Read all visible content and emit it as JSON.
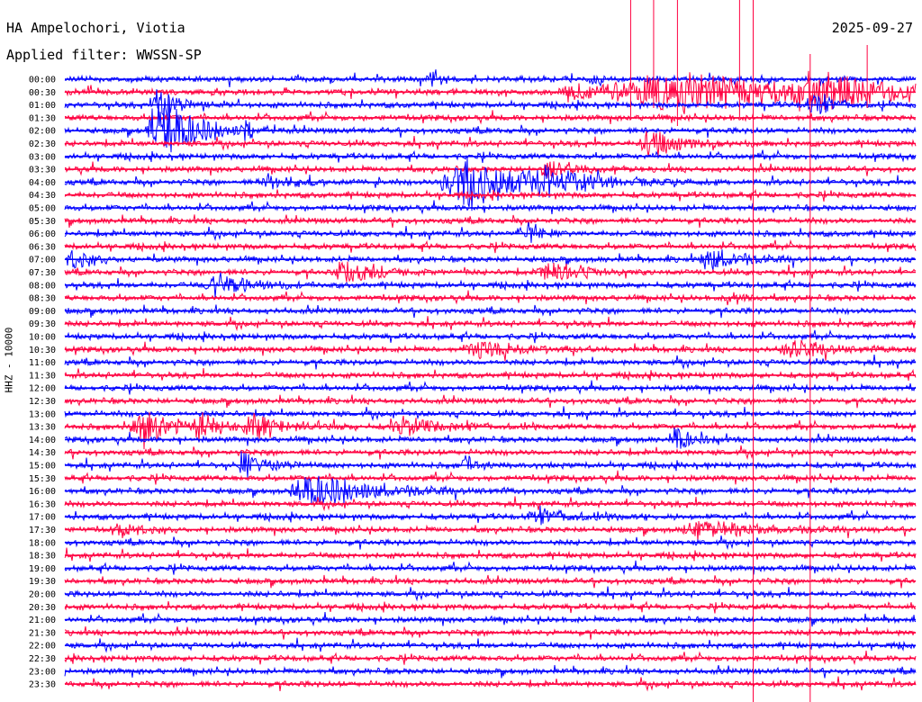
{
  "header": {
    "station": "HA Ampelochori, Viotia",
    "filter": "Applied filter: WWSSN-SP",
    "date": "2025-09-27"
  },
  "chart_data": {
    "type": "line",
    "title": "HA Ampelochori, Viotia",
    "subtitle": "Applied filter: WWSSN-SP",
    "date": "2025-09-27",
    "ylabel": "HHZ - 10000",
    "xlabel": "",
    "grid": false,
    "colors": [
      "#0000ff",
      "#ff0040"
    ],
    "rows": [
      "00:00",
      "00:30",
      "01:00",
      "01:30",
      "02:00",
      "02:30",
      "03:00",
      "03:30",
      "04:00",
      "04:30",
      "05:00",
      "05:30",
      "06:00",
      "06:30",
      "07:00",
      "07:30",
      "08:00",
      "08:30",
      "09:00",
      "09:30",
      "10:00",
      "10:30",
      "11:00",
      "11:30",
      "12:00",
      "12:30",
      "13:00",
      "13:30",
      "14:00",
      "14:30",
      "15:00",
      "15:30",
      "16:00",
      "16:30",
      "17:00",
      "17:30",
      "18:00",
      "18:30",
      "19:00",
      "19:30",
      "20:00",
      "20:30",
      "21:00",
      "21:30",
      "22:00",
      "22:30",
      "23:00",
      "23:30"
    ],
    "events": [
      {
        "row": 0,
        "x": 0.43,
        "amp": 10,
        "dur": 0.01
      },
      {
        "row": 0,
        "x": 0.62,
        "amp": 6,
        "dur": 0.01
      },
      {
        "row": 1,
        "x": 0.6,
        "amp": 10,
        "dur": 0.04
      },
      {
        "row": 1,
        "x": 0.72,
        "amp": 22,
        "dur": 0.18
      },
      {
        "row": 1,
        "x": 0.88,
        "amp": 18,
        "dur": 0.06
      },
      {
        "row": 2,
        "x": 0.11,
        "amp": 26,
        "dur": 0.015
      },
      {
        "row": 2,
        "x": 0.88,
        "amp": 14,
        "dur": 0.02
      },
      {
        "row": 4,
        "x": 0.11,
        "amp": 55,
        "dur": 0.03
      },
      {
        "row": 4,
        "x": 0.21,
        "amp": 16,
        "dur": 0.01
      },
      {
        "row": 5,
        "x": 0.69,
        "amp": 16,
        "dur": 0.03
      },
      {
        "row": 7,
        "x": 0.57,
        "amp": 10,
        "dur": 0.03
      },
      {
        "row": 8,
        "x": 0.47,
        "amp": 34,
        "dur": 0.06
      },
      {
        "row": 8,
        "x": 0.57,
        "amp": 16,
        "dur": 0.04
      },
      {
        "row": 8,
        "x": 0.24,
        "amp": 10,
        "dur": 0.03
      },
      {
        "row": 12,
        "x": 0.54,
        "amp": 18,
        "dur": 0.015
      },
      {
        "row": 14,
        "x": 0.76,
        "amp": 14,
        "dur": 0.03
      },
      {
        "row": 14,
        "x": 0.01,
        "amp": 12,
        "dur": 0.02
      },
      {
        "row": 15,
        "x": 0.33,
        "amp": 16,
        "dur": 0.03
      },
      {
        "row": 15,
        "x": 0.57,
        "amp": 14,
        "dur": 0.03
      },
      {
        "row": 16,
        "x": 0.18,
        "amp": 16,
        "dur": 0.03
      },
      {
        "row": 17,
        "x": 0.78,
        "amp": 14,
        "dur": 0.01
      },
      {
        "row": 21,
        "x": 0.49,
        "amp": 10,
        "dur": 0.04
      },
      {
        "row": 21,
        "x": 0.86,
        "amp": 10,
        "dur": 0.04
      },
      {
        "row": 27,
        "x": 0.09,
        "amp": 24,
        "dur": 0.03
      },
      {
        "row": 27,
        "x": 0.16,
        "amp": 14,
        "dur": 0.02
      },
      {
        "row": 27,
        "x": 0.22,
        "amp": 14,
        "dur": 0.03
      },
      {
        "row": 27,
        "x": 0.4,
        "amp": 10,
        "dur": 0.04
      },
      {
        "row": 28,
        "x": 0.72,
        "amp": 18,
        "dur": 0.012
      },
      {
        "row": 30,
        "x": 0.21,
        "amp": 18,
        "dur": 0.02
      },
      {
        "row": 30,
        "x": 0.47,
        "amp": 12,
        "dur": 0.01
      },
      {
        "row": 32,
        "x": 0.29,
        "amp": 20,
        "dur": 0.06
      },
      {
        "row": 34,
        "x": 0.56,
        "amp": 8,
        "dur": 0.04
      },
      {
        "row": 35,
        "x": 0.75,
        "amp": 12,
        "dur": 0.05
      },
      {
        "row": 35,
        "x": 0.07,
        "amp": 8,
        "dur": 0.02
      }
    ],
    "spikes": [
      {
        "x": 0.665,
        "top": 0,
        "bottom": 130
      },
      {
        "x": 0.692,
        "top": 0,
        "bottom": 120
      },
      {
        "x": 0.72,
        "top": 0,
        "bottom": 140
      },
      {
        "x": 0.793,
        "top": 0,
        "bottom": 130
      },
      {
        "x": 0.809,
        "top": 0,
        "bottom": 780
      },
      {
        "x": 0.876,
        "top": 60,
        "bottom": 780
      },
      {
        "x": 0.943,
        "top": 50,
        "bottom": 120
      }
    ]
  }
}
